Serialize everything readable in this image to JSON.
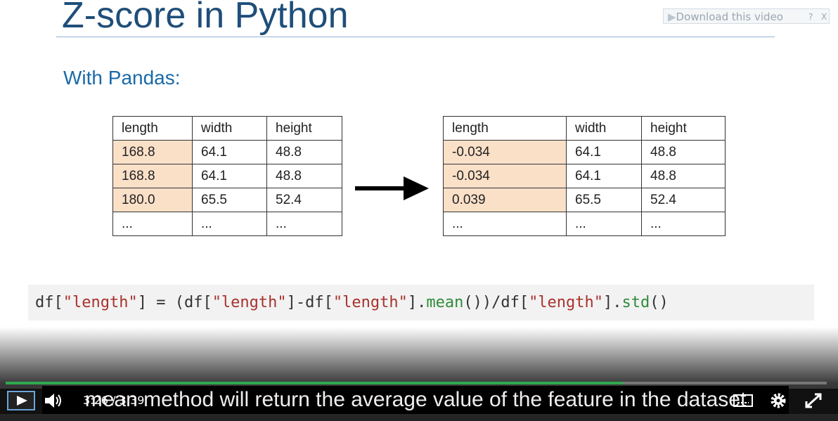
{
  "slide": {
    "title": "Z-score in Python",
    "subtitle": "With Pandas:",
    "tables": [
      {
        "header": [
          "length",
          "width",
          "height"
        ],
        "rows": [
          [
            "168.8",
            "64.1",
            "48.8"
          ],
          [
            "168.8",
            "64.1",
            "48.8"
          ],
          [
            "180.0",
            "65.5",
            "52.4"
          ],
          [
            "...",
            "...",
            "..."
          ]
        ]
      },
      {
        "header": [
          "length",
          "width",
          "height"
        ],
        "rows": [
          [
            "-0.034",
            "64.1",
            "48.8"
          ],
          [
            "-0.034",
            "64.1",
            "48.8"
          ],
          [
            "0.039",
            "65.5",
            "52.4"
          ],
          [
            "...",
            "...",
            "..."
          ]
        ]
      }
    ],
    "code": [
      {
        "text": "df[",
        "color": "#333333"
      },
      {
        "text": "\"length\"",
        "color": "#a8322d"
      },
      {
        "text": "] = (df[",
        "color": "#333333"
      },
      {
        "text": "\"length\"",
        "color": "#a8322d"
      },
      {
        "text": "]-df[",
        "color": "#333333"
      },
      {
        "text": "\"length\"",
        "color": "#a8322d"
      },
      {
        "text": "].",
        "color": "#333333"
      },
      {
        "text": "mean",
        "color": "#2e8b3a"
      },
      {
        "text": "())/df[",
        "color": "#333333"
      },
      {
        "text": "\"length\"",
        "color": "#a8322d"
      },
      {
        "text": "].",
        "color": "#333333"
      },
      {
        "text": "std",
        "color": "#2e8b3a"
      },
      {
        "text": "()",
        "color": "#333333"
      }
    ]
  },
  "download": {
    "label": "Download this video",
    "help": "?",
    "close": "X"
  },
  "player": {
    "current_time": "3:26",
    "separator": "/",
    "duration": "3:39",
    "caption": "mean method will return the average value of the feature in the dataset"
  }
}
